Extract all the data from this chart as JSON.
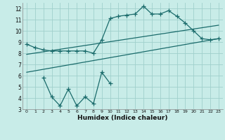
{
  "title": "",
  "xlabel": "Humidex (Indice chaleur)",
  "bg_color": "#c8ece8",
  "grid_color": "#a0d0cc",
  "line_color": "#1a6b6b",
  "xlim": [
    -0.5,
    23.5
  ],
  "ylim": [
    3,
    12.5
  ],
  "xticks": [
    0,
    1,
    2,
    3,
    4,
    5,
    6,
    7,
    8,
    9,
    10,
    11,
    12,
    13,
    14,
    15,
    16,
    17,
    18,
    19,
    20,
    21,
    22,
    23
  ],
  "yticks": [
    3,
    4,
    5,
    6,
    7,
    8,
    9,
    10,
    11,
    12
  ],
  "line1_x": [
    0,
    1,
    2,
    3,
    4,
    5,
    6,
    7,
    8,
    9,
    10,
    11,
    12,
    13,
    14,
    15,
    16,
    17,
    18,
    19,
    20,
    21,
    22,
    23
  ],
  "line1_y": [
    8.8,
    8.5,
    8.3,
    8.2,
    8.2,
    8.2,
    8.2,
    8.2,
    8.0,
    9.2,
    11.1,
    11.3,
    11.4,
    11.5,
    12.2,
    11.5,
    11.5,
    11.8,
    11.3,
    10.7,
    10.0,
    9.3,
    9.2,
    9.3
  ],
  "line2_x": [
    2,
    3,
    4,
    5,
    6,
    7,
    8,
    9,
    10
  ],
  "line2_y": [
    5.8,
    4.1,
    3.3,
    4.8,
    3.3,
    4.1,
    3.5,
    6.3,
    5.3
  ],
  "line3_x": [
    0,
    23
  ],
  "line3_y": [
    6.3,
    9.3
  ],
  "line4_x": [
    0,
    23
  ],
  "line4_y": [
    7.9,
    10.5
  ]
}
